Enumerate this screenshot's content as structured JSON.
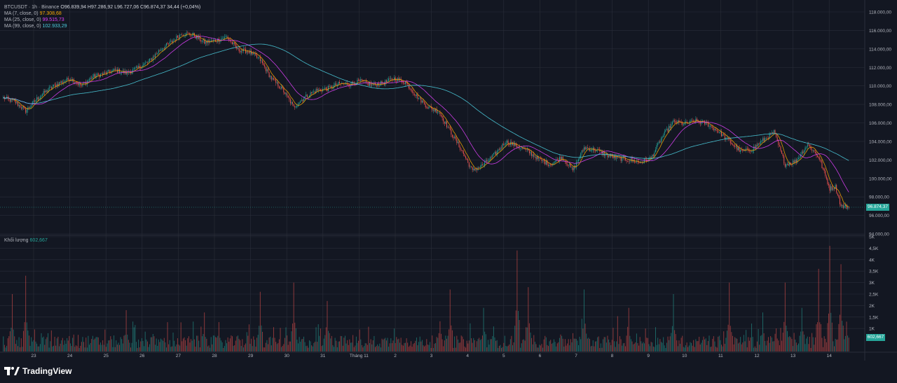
{
  "legend": {
    "symbol": "BTCUSDT · 1h · Binance",
    "ohlc": "O96.839,94 H97.286,92 L96.727,06 C96.874,37 34,44 (+0,04%)",
    "ma7_label": "MA (7, close, 0)",
    "ma7_value": "97.308,68",
    "ma25_label": "MA (25, close, 0)",
    "ma25_value": "99.515,73",
    "ma99_label": "MA (99, close, 0)",
    "ma99_value": "102.933,29"
  },
  "volume_legend": {
    "label": "Khối lượng",
    "value": "602,667"
  },
  "price_tag": "96.874,37",
  "volume_tag": "602,667",
  "brand": "TradingView",
  "colors": {
    "up": "#26a69a",
    "down": "#ef5350",
    "ma7": "#f7a600",
    "ma25": "#e040fb",
    "ma99": "#4dd0e1",
    "background": "#131722",
    "grid": "#2a2e39"
  },
  "chart_data": {
    "type": "candlestick",
    "price_axis": {
      "ylim": [
        94000,
        118000
      ],
      "ticks": [
        "118.000,00",
        "116.000,00",
        "114.000,00",
        "112.000,00",
        "110.000,00",
        "108.000,00",
        "106.000,00",
        "104.000,00",
        "102.000,00",
        "100.000,00",
        "98.000,00",
        "96.000,00",
        "94.000,00"
      ],
      "tick_values": [
        118000,
        116000,
        114000,
        112000,
        110000,
        108000,
        106000,
        104000,
        102000,
        100000,
        98000,
        96000,
        94000
      ]
    },
    "volume_axis": {
      "ylim": [
        0,
        5000
      ],
      "ticks": [
        "5K",
        "4,5K",
        "4K",
        "3,5K",
        "3K",
        "2,5K",
        "2K",
        "1,5K",
        "1K"
      ],
      "tick_values": [
        5000,
        4500,
        4000,
        3500,
        3000,
        2500,
        2000,
        1500,
        1000
      ]
    },
    "x_ticks": [
      "23",
      "24",
      "25",
      "26",
      "27",
      "28",
      "29",
      "30",
      "31",
      "Tháng 11",
      "2",
      "3",
      "4",
      "5",
      "6",
      "7",
      "8",
      "9",
      "10",
      "11",
      "12",
      "13",
      "14"
    ],
    "price_anchors": [
      [
        0,
        108700
      ],
      [
        10,
        108300
      ],
      [
        20,
        107300
      ],
      [
        30,
        108600
      ],
      [
        40,
        109600
      ],
      [
        50,
        110300
      ],
      [
        60,
        110800
      ],
      [
        70,
        110000
      ],
      [
        80,
        111000
      ],
      [
        90,
        111300
      ],
      [
        100,
        111700
      ],
      [
        110,
        111400
      ],
      [
        120,
        111900
      ],
      [
        130,
        112600
      ],
      [
        140,
        113900
      ],
      [
        150,
        114700
      ],
      [
        160,
        115700
      ],
      [
        170,
        115500
      ],
      [
        180,
        114700
      ],
      [
        190,
        114900
      ],
      [
        200,
        115300
      ],
      [
        210,
        113900
      ],
      [
        220,
        113700
      ],
      [
        230,
        112800
      ],
      [
        240,
        110800
      ],
      [
        250,
        109600
      ],
      [
        260,
        107700
      ],
      [
        270,
        108800
      ],
      [
        280,
        109500
      ],
      [
        290,
        109700
      ],
      [
        300,
        110200
      ],
      [
        310,
        110200
      ],
      [
        320,
        110500
      ],
      [
        330,
        110100
      ],
      [
        340,
        110300
      ],
      [
        350,
        110800
      ],
      [
        360,
        110400
      ],
      [
        370,
        108900
      ],
      [
        380,
        107700
      ],
      [
        390,
        107200
      ],
      [
        400,
        105100
      ],
      [
        410,
        103100
      ],
      [
        420,
        100800
      ],
      [
        430,
        101500
      ],
      [
        440,
        102600
      ],
      [
        450,
        104000
      ],
      [
        460,
        103500
      ],
      [
        470,
        102900
      ],
      [
        480,
        102000
      ],
      [
        490,
        101500
      ],
      [
        500,
        102300
      ],
      [
        510,
        100900
      ],
      [
        520,
        103300
      ],
      [
        530,
        103100
      ],
      [
        540,
        102500
      ],
      [
        550,
        102200
      ],
      [
        560,
        102000
      ],
      [
        570,
        101700
      ],
      [
        580,
        102200
      ],
      [
        590,
        104500
      ],
      [
        600,
        106100
      ],
      [
        610,
        105900
      ],
      [
        620,
        106200
      ],
      [
        630,
        105900
      ],
      [
        640,
        105100
      ],
      [
        650,
        104000
      ],
      [
        660,
        102900
      ],
      [
        670,
        103100
      ],
      [
        680,
        104100
      ],
      [
        690,
        105000
      ],
      [
        700,
        101500
      ],
      [
        710,
        101900
      ],
      [
        720,
        103700
      ],
      [
        730,
        102300
      ],
      [
        740,
        98900
      ],
      [
        745,
        99100
      ],
      [
        750,
        97000
      ],
      [
        757,
        96874
      ]
    ],
    "volume_spikes": [
      [
        8,
        2500
      ],
      [
        20,
        3300
      ],
      [
        110,
        1800
      ],
      [
        180,
        1700
      ],
      [
        230,
        2600
      ],
      [
        260,
        3000
      ],
      [
        290,
        2200
      ],
      [
        350,
        1000
      ],
      [
        400,
        2700
      ],
      [
        430,
        1900
      ],
      [
        460,
        4400
      ],
      [
        470,
        2800
      ],
      [
        520,
        2700
      ],
      [
        560,
        1900
      ],
      [
        575,
        1000
      ],
      [
        600,
        2500
      ],
      [
        650,
        3000
      ],
      [
        680,
        1700
      ],
      [
        700,
        3000
      ],
      [
        715,
        1900
      ],
      [
        730,
        3600
      ],
      [
        740,
        4600
      ],
      [
        750,
        3800
      ],
      [
        755,
        1300
      ]
    ],
    "ma_windows": [
      7,
      25,
      99
    ],
    "last_close": 96874.37,
    "last_volume": 602.667
  }
}
